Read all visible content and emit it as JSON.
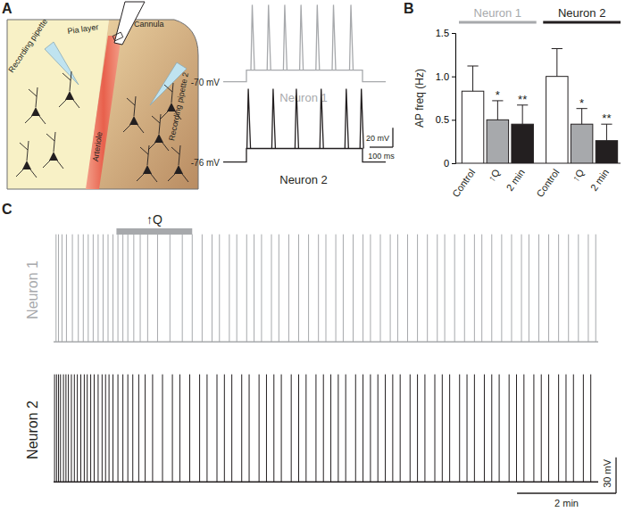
{
  "chart_data": [
    {
      "type": "diagram",
      "panel": "A",
      "labels": [
        "Recording pipette",
        "Pia layer",
        "Cannula",
        "Arteriole",
        "Recording pipette 2"
      ]
    },
    {
      "type": "trace",
      "xlim": [
        0,
        700
      ],
      "scale_bar": {
        "x": {
          "value": 100,
          "label": "100 ms"
        },
        "y": {
          "value": 20,
          "label": "20 mV"
        }
      },
      "series": [
        {
          "name": "Neuron 1",
          "color": "#a7a9ac",
          "baseline": {
            "value": -70,
            "label": "-70 mV"
          },
          "ylim": [
            -75,
            15
          ],
          "stimulus": [
            100,
            600
          ],
          "plateau": -58,
          "peak": 10,
          "spike_times": [
            125,
            195,
            265,
            335,
            405,
            475,
            550
          ]
        },
        {
          "name": "Neuron 2",
          "color": "#231f20",
          "baseline": {
            "value": -76,
            "label": "-76 mV"
          },
          "ylim": [
            -80,
            5
          ],
          "stimulus": [
            100,
            600
          ],
          "plateau": -62,
          "peak": 0,
          "spike_times": [
            108,
            215,
            315,
            422,
            530,
            595
          ]
        }
      ]
    },
    {
      "type": "bar",
      "panel": "B",
      "ylabel": "AP freq (Hz)",
      "ylim": [
        0,
        1.5
      ],
      "yticks": [
        0,
        0.5,
        {
          "value": 1,
          "label": "1.0"
        },
        1.5
      ],
      "categories": [
        "Control",
        "↑Q",
        "2 min"
      ],
      "colors": [
        "#ffffff",
        "#a7a9ac",
        "#231f20"
      ],
      "series": [
        {
          "name": "Neuron 1",
          "color": "#a7a9ac",
          "values": [
            0.83,
            0.5,
            0.45
          ],
          "errors": [
            0.29,
            0.22,
            0.22
          ],
          "significance": [
            null,
            "*",
            "**"
          ]
        },
        {
          "name": "Neuron 2",
          "color": "#231f20",
          "values": [
            1.0,
            0.45,
            0.26
          ],
          "errors": [
            0.32,
            0.18,
            0.19
          ],
          "significance": [
            null,
            "*",
            "**"
          ]
        }
      ]
    },
    {
      "type": "trace",
      "panel": "C",
      "xlim": [
        0,
        11
      ],
      "stimulus": {
        "label": "↑Q",
        "range": [
          1.27,
          2.8
        ]
      },
      "scale_bar": {
        "x": {
          "value": 2,
          "label": "2 min"
        },
        "y": {
          "value": 30,
          "label": "30 mV"
        }
      },
      "series": [
        {
          "name": "Neuron 1",
          "color": "#a7a9ac",
          "ylim": [
            -5,
            92
          ],
          "baseline": 0,
          "peak": 90,
          "spike_times": [
            0.05,
            0.1,
            0.17,
            0.26,
            0.38,
            0.5,
            0.6,
            0.7,
            0.8,
            0.9,
            1.0,
            1.1,
            1.2,
            1.3,
            1.4,
            1.5,
            1.62,
            1.75,
            1.9,
            2.1,
            2.35,
            2.6,
            2.8,
            3.0,
            3.2,
            3.35,
            3.55,
            3.7,
            3.9,
            4.05,
            4.2,
            4.4,
            4.55,
            4.75,
            4.95,
            5.15,
            5.35,
            5.5,
            5.7,
            5.85,
            6.05,
            6.25,
            6.4,
            6.6,
            6.8,
            6.95,
            7.15,
            7.35,
            7.55,
            7.75,
            7.9,
            8.1,
            8.3,
            8.5,
            8.65,
            8.85,
            9.05,
            9.25,
            9.45,
            9.6,
            9.8,
            10.0,
            10.2,
            10.4,
            10.6,
            10.8,
            10.95
          ]
        },
        {
          "name": "Neuron 2",
          "color": "#231f20",
          "ylim": [
            -5,
            92
          ],
          "baseline": 0,
          "peak": 90,
          "spike_times": [
            0.02,
            0.06,
            0.1,
            0.14,
            0.2,
            0.25,
            0.3,
            0.36,
            0.42,
            0.48,
            0.55,
            0.62,
            0.68,
            0.75,
            0.82,
            0.9,
            0.98,
            1.05,
            1.12,
            1.2,
            1.3,
            1.4,
            1.5,
            1.6,
            1.72,
            1.85,
            2.0,
            2.2,
            2.4,
            2.55,
            2.75,
            2.95,
            3.1,
            3.3,
            3.45,
            3.6,
            3.8,
            3.95,
            4.15,
            4.3,
            4.45,
            4.6,
            4.8,
            4.95,
            5.1,
            5.3,
            5.45,
            5.6,
            5.75,
            5.9,
            6.1,
            6.25,
            6.4,
            6.55,
            6.7,
            6.85,
            7.0,
            7.2,
            7.35,
            7.5,
            7.7,
            7.85,
            8.0,
            8.2,
            8.35,
            8.5,
            8.7,
            8.85,
            9.0,
            9.2,
            9.35,
            9.5,
            9.7,
            9.85,
            10.0,
            10.2,
            10.35,
            10.5,
            10.7,
            10.85
          ]
        }
      ]
    }
  ]
}
